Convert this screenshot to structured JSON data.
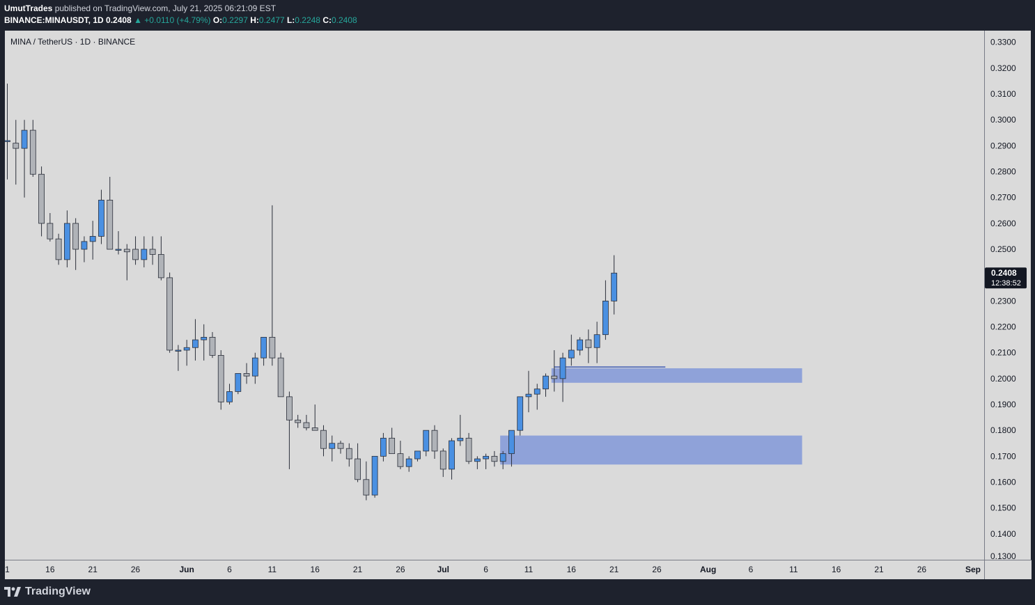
{
  "header": {
    "author": "UmutTrades",
    "published_text": "published on TradingView.com, July 21, 2025 06:21:09 EST",
    "symbol": "BINANCE:MINAUSDT, 1D",
    "price": "0.2408",
    "change": "+0.0110 (+4.79%)",
    "o_label": "O:",
    "o": "0.2297",
    "h_label": "H:",
    "h": "0.2477",
    "l_label": "L:",
    "l": "0.2248",
    "c_label": "C:",
    "c": "0.2408"
  },
  "chart_title": "MINA / TetherUS · 1D · BINANCE",
  "brand": "TradingView",
  "colors": {
    "up": "#4a90e2",
    "down": "#b0b3b8",
    "zone": "#8fa2d9",
    "bg": "#dadada",
    "frame": "#1e222d"
  },
  "chart_data": {
    "type": "candlestick",
    "ylim": [
      0.13,
      0.3345
    ],
    "y_ticks": [
      "0.3300",
      "0.3200",
      "0.3100",
      "0.3000",
      "0.2900",
      "0.2800",
      "0.2700",
      "0.2600",
      "0.2500",
      "0.2400",
      "0.2300",
      "0.2200",
      "0.2100",
      "0.2000",
      "0.1900",
      "0.1800",
      "0.1700",
      "0.1600",
      "0.1500",
      "0.1400",
      "0.1300"
    ],
    "x_ticks": [
      {
        "label": "1",
        "day": 0
      },
      {
        "label": "16",
        "day": 5
      },
      {
        "label": "21",
        "day": 10
      },
      {
        "label": "26",
        "day": 15
      },
      {
        "label": "Jun",
        "day": 21
      },
      {
        "label": "6",
        "day": 26
      },
      {
        "label": "11",
        "day": 31
      },
      {
        "label": "16",
        "day": 36
      },
      {
        "label": "21",
        "day": 41
      },
      {
        "label": "26",
        "day": 46
      },
      {
        "label": "Jul",
        "day": 51
      },
      {
        "label": "6",
        "day": 56
      },
      {
        "label": "11",
        "day": 61
      },
      {
        "label": "16",
        "day": 66
      },
      {
        "label": "21",
        "day": 71
      },
      {
        "label": "26",
        "day": 76
      },
      {
        "label": "Aug",
        "day": 82
      },
      {
        "label": "6",
        "day": 87
      },
      {
        "label": "11",
        "day": 92
      },
      {
        "label": "16",
        "day": 97
      },
      {
        "label": "21",
        "day": 102
      },
      {
        "label": "26",
        "day": 107
      },
      {
        "label": "Sep",
        "day": 113
      }
    ],
    "ohlc": [
      [
        0.292,
        0.314,
        0.277,
        0.292
      ],
      [
        0.291,
        0.3,
        0.275,
        0.289
      ],
      [
        0.289,
        0.3,
        0.27,
        0.296
      ],
      [
        0.296,
        0.3,
        0.278,
        0.279
      ],
      [
        0.279,
        0.282,
        0.255,
        0.26
      ],
      [
        0.26,
        0.264,
        0.253,
        0.254
      ],
      [
        0.254,
        0.256,
        0.244,
        0.246
      ],
      [
        0.246,
        0.265,
        0.243,
        0.26
      ],
      [
        0.26,
        0.262,
        0.242,
        0.25
      ],
      [
        0.25,
        0.255,
        0.245,
        0.253
      ],
      [
        0.253,
        0.261,
        0.246,
        0.255
      ],
      [
        0.255,
        0.273,
        0.252,
        0.269
      ],
      [
        0.269,
        0.278,
        0.25,
        0.25
      ],
      [
        0.25,
        0.257,
        0.248,
        0.25
      ],
      [
        0.25,
        0.252,
        0.238,
        0.249
      ],
      [
        0.25,
        0.255,
        0.244,
        0.246
      ],
      [
        0.246,
        0.255,
        0.243,
        0.25
      ],
      [
        0.25,
        0.255,
        0.244,
        0.248
      ],
      [
        0.248,
        0.255,
        0.238,
        0.239
      ],
      [
        0.239,
        0.241,
        0.21,
        0.211
      ],
      [
        0.211,
        0.213,
        0.203,
        0.211
      ],
      [
        0.211,
        0.215,
        0.205,
        0.212
      ],
      [
        0.212,
        0.223,
        0.207,
        0.215
      ],
      [
        0.215,
        0.221,
        0.207,
        0.216
      ],
      [
        0.216,
        0.218,
        0.208,
        0.209
      ],
      [
        0.209,
        0.211,
        0.188,
        0.191
      ],
      [
        0.191,
        0.198,
        0.19,
        0.195
      ],
      [
        0.195,
        0.202,
        0.194,
        0.202
      ],
      [
        0.202,
        0.206,
        0.198,
        0.201
      ],
      [
        0.201,
        0.21,
        0.198,
        0.208
      ],
      [
        0.208,
        0.216,
        0.205,
        0.216
      ],
      [
        0.216,
        0.267,
        0.205,
        0.208
      ],
      [
        0.208,
        0.21,
        0.193,
        0.193
      ],
      [
        0.193,
        0.195,
        0.165,
        0.184
      ],
      [
        0.184,
        0.186,
        0.181,
        0.183
      ],
      [
        0.183,
        0.186,
        0.18,
        0.181
      ],
      [
        0.181,
        0.19,
        0.18,
        0.18
      ],
      [
        0.18,
        0.182,
        0.17,
        0.173
      ],
      [
        0.173,
        0.178,
        0.168,
        0.175
      ],
      [
        0.175,
        0.176,
        0.171,
        0.173
      ],
      [
        0.173,
        0.175,
        0.166,
        0.169
      ],
      [
        0.169,
        0.175,
        0.16,
        0.161
      ],
      [
        0.161,
        0.168,
        0.153,
        0.155
      ],
      [
        0.155,
        0.17,
        0.154,
        0.17
      ],
      [
        0.17,
        0.179,
        0.168,
        0.177
      ],
      [
        0.177,
        0.181,
        0.172,
        0.171
      ],
      [
        0.171,
        0.176,
        0.165,
        0.166
      ],
      [
        0.166,
        0.17,
        0.164,
        0.169
      ],
      [
        0.169,
        0.172,
        0.168,
        0.172
      ],
      [
        0.172,
        0.18,
        0.17,
        0.18
      ],
      [
        0.18,
        0.182,
        0.169,
        0.172
      ],
      [
        0.172,
        0.173,
        0.162,
        0.165
      ],
      [
        0.165,
        0.177,
        0.161,
        0.176
      ],
      [
        0.176,
        0.186,
        0.174,
        0.177
      ],
      [
        0.177,
        0.179,
        0.167,
        0.168
      ],
      [
        0.168,
        0.17,
        0.165,
        0.169
      ],
      [
        0.169,
        0.171,
        0.165,
        0.17
      ],
      [
        0.17,
        0.172,
        0.166,
        0.168
      ],
      [
        0.168,
        0.172,
        0.165,
        0.171
      ],
      [
        0.171,
        0.18,
        0.166,
        0.18
      ],
      [
        0.18,
        0.193,
        0.178,
        0.193
      ],
      [
        0.193,
        0.203,
        0.187,
        0.194
      ],
      [
        0.194,
        0.198,
        0.188,
        0.196
      ],
      [
        0.196,
        0.202,
        0.193,
        0.201
      ],
      [
        0.201,
        0.211,
        0.195,
        0.2
      ],
      [
        0.2,
        0.21,
        0.191,
        0.208
      ],
      [
        0.208,
        0.217,
        0.205,
        0.211
      ],
      [
        0.211,
        0.216,
        0.209,
        0.215
      ],
      [
        0.215,
        0.219,
        0.206,
        0.212
      ],
      [
        0.212,
        0.222,
        0.206,
        0.217
      ],
      [
        0.217,
        0.238,
        0.215,
        0.23
      ],
      [
        0.23,
        0.2477,
        0.2248,
        0.2408
      ]
    ],
    "zones": [
      {
        "from_day": 64,
        "to_day": 93,
        "low": 0.1984,
        "high": 0.204
      },
      {
        "from_day": 58,
        "to_day": 93,
        "low": 0.1668,
        "high": 0.178
      }
    ],
    "level_line": {
      "from_day": 64,
      "to_day": 77,
      "y": 0.2045
    },
    "last_price_label": "0.2408",
    "countdown": "12:38:52",
    "grid": false
  }
}
